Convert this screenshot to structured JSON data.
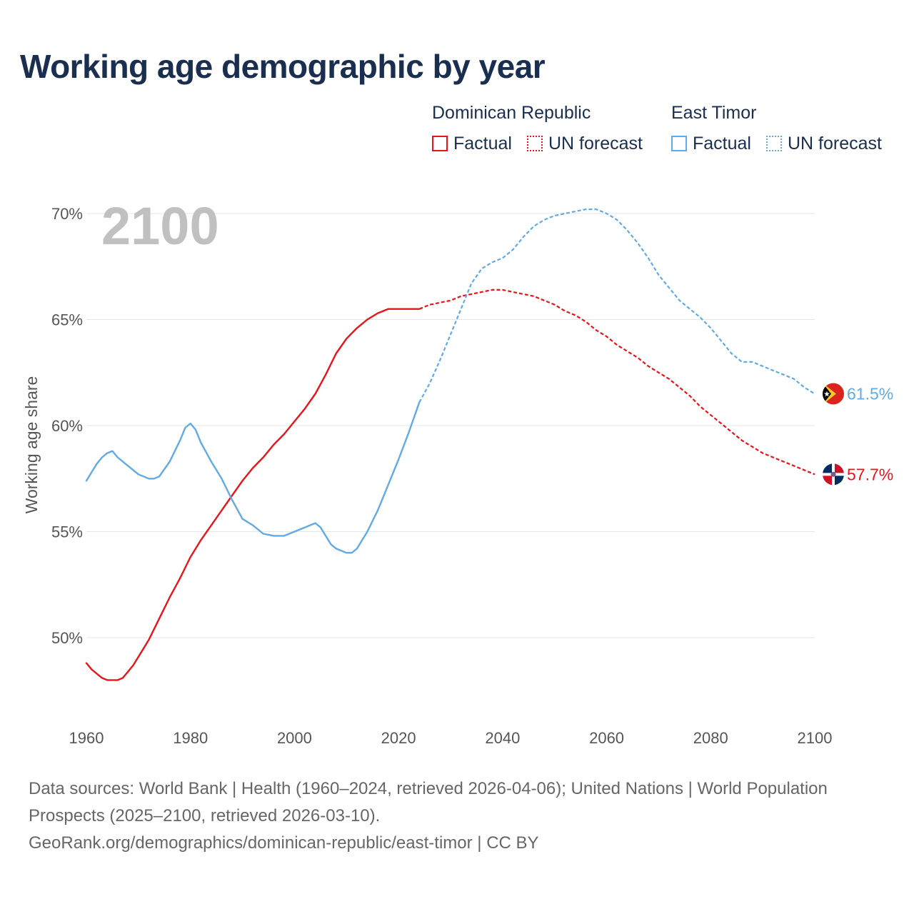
{
  "title": "Working age demographic by year",
  "legend": {
    "dominican": {
      "name": "Dominican Republic",
      "factual": "Factual",
      "forecast": "UN forecast",
      "color": "#e8141a"
    },
    "east_timor": {
      "name": "East Timor",
      "factual": "Factual",
      "forecast": "UN forecast",
      "color": "#62aae6"
    }
  },
  "footer": {
    "sources": "Data sources: World Bank | Health (1960–2024, retrieved 2026-04-06); United Nations | World Population Prospects (2025–2100, retrieved 2026-03-10).",
    "credit": "GeoRank.org/demographics/dominican-republic/east-timor | CC BY"
  },
  "chart_data": {
    "type": "line",
    "title": "Working age demographic by year",
    "ylabel": "Working age share",
    "xlabel": "",
    "year_watermark": "2100",
    "xlim": [
      1960,
      2100
    ],
    "ylim": [
      46.5,
      72
    ],
    "x_ticks": [
      1960,
      1980,
      2000,
      2020,
      2040,
      2060,
      2080,
      2100
    ],
    "x_tick_labels": [
      "1960",
      "1980",
      "2000",
      "2020",
      "2040",
      "2060",
      "2080",
      "2100"
    ],
    "y_ticks": [
      50,
      55,
      60,
      65,
      70
    ],
    "y_tick_labels": [
      "50%",
      "55%",
      "60%",
      "65%",
      "70%"
    ],
    "grid": true,
    "series": [
      {
        "name": "Dominican Republic",
        "color": "#e8141a",
        "flag": "dominican-republic-flag",
        "end_label": "57.7%",
        "factual": {
          "x": [
            1960,
            1961,
            1962,
            1963,
            1964,
            1965,
            1966,
            1967,
            1968,
            1969,
            1970,
            1972,
            1974,
            1976,
            1978,
            1980,
            1982,
            1984,
            1986,
            1988,
            1990,
            1992,
            1994,
            1996,
            1998,
            2000,
            2002,
            2004,
            2006,
            2008,
            2010,
            2012,
            2014,
            2016,
            2018,
            2020,
            2022,
            2024
          ],
          "y": [
            48.8,
            48.5,
            48.3,
            48.1,
            48.0,
            48.0,
            48.0,
            48.1,
            48.4,
            48.7,
            49.1,
            49.9,
            50.9,
            51.9,
            52.8,
            53.8,
            54.6,
            55.3,
            56.0,
            56.7,
            57.4,
            58.0,
            58.5,
            59.1,
            59.6,
            60.2,
            60.8,
            61.5,
            62.4,
            63.4,
            64.1,
            64.6,
            65.0,
            65.3,
            65.5,
            65.5,
            65.5,
            65.5
          ]
        },
        "forecast": {
          "x": [
            2024,
            2026,
            2028,
            2030,
            2032,
            2034,
            2036,
            2038,
            2040,
            2042,
            2044,
            2046,
            2048,
            2050,
            2052,
            2054,
            2056,
            2058,
            2060,
            2062,
            2064,
            2066,
            2068,
            2070,
            2072,
            2074,
            2076,
            2078,
            2080,
            2082,
            2084,
            2086,
            2088,
            2090,
            2092,
            2094,
            2096,
            2098,
            2100
          ],
          "y": [
            65.5,
            65.7,
            65.8,
            65.9,
            66.1,
            66.2,
            66.3,
            66.4,
            66.4,
            66.3,
            66.2,
            66.1,
            65.9,
            65.7,
            65.4,
            65.2,
            64.9,
            64.5,
            64.2,
            63.8,
            63.5,
            63.2,
            62.8,
            62.5,
            62.2,
            61.8,
            61.4,
            60.9,
            60.5,
            60.1,
            59.7,
            59.3,
            59.0,
            58.7,
            58.5,
            58.3,
            58.1,
            57.9,
            57.7
          ]
        }
      },
      {
        "name": "East Timor",
        "color": "#62aae6",
        "flag": "east-timor-flag",
        "end_label": "61.5%",
        "factual": {
          "x": [
            1960,
            1961,
            1962,
            1963,
            1964,
            1965,
            1966,
            1968,
            1970,
            1972,
            1973,
            1974,
            1976,
            1978,
            1979,
            1980,
            1981,
            1982,
            1984,
            1986,
            1988,
            1990,
            1992,
            1994,
            1996,
            1998,
            2000,
            2002,
            2004,
            2005,
            2006,
            2007,
            2008,
            2010,
            2011,
            2012,
            2014,
            2016,
            2018,
            2020,
            2022,
            2024
          ],
          "y": [
            57.4,
            57.8,
            58.2,
            58.5,
            58.7,
            58.8,
            58.5,
            58.1,
            57.7,
            57.5,
            57.5,
            57.6,
            58.3,
            59.3,
            59.9,
            60.1,
            59.8,
            59.2,
            58.3,
            57.5,
            56.5,
            55.6,
            55.3,
            54.9,
            54.8,
            54.8,
            55.0,
            55.2,
            55.4,
            55.2,
            54.8,
            54.4,
            54.2,
            54.0,
            54.0,
            54.2,
            55.0,
            56.0,
            57.2,
            58.4,
            59.7,
            61.1
          ]
        },
        "forecast": {
          "x": [
            2024,
            2026,
            2028,
            2030,
            2032,
            2034,
            2036,
            2038,
            2040,
            2042,
            2044,
            2046,
            2048,
            2050,
            2052,
            2054,
            2056,
            2058,
            2060,
            2062,
            2064,
            2066,
            2068,
            2070,
            2072,
            2074,
            2076,
            2078,
            2080,
            2082,
            2084,
            2086,
            2088,
            2090,
            2092,
            2094,
            2096,
            2098,
            2100
          ],
          "y": [
            61.1,
            62.0,
            63.1,
            64.3,
            65.5,
            66.7,
            67.4,
            67.7,
            67.9,
            68.3,
            68.9,
            69.4,
            69.7,
            69.9,
            70.0,
            70.1,
            70.2,
            70.2,
            70.0,
            69.7,
            69.2,
            68.6,
            67.9,
            67.1,
            66.5,
            65.9,
            65.5,
            65.1,
            64.6,
            64.0,
            63.4,
            63.0,
            63.0,
            62.8,
            62.6,
            62.4,
            62.2,
            61.8,
            61.5
          ]
        }
      }
    ]
  }
}
